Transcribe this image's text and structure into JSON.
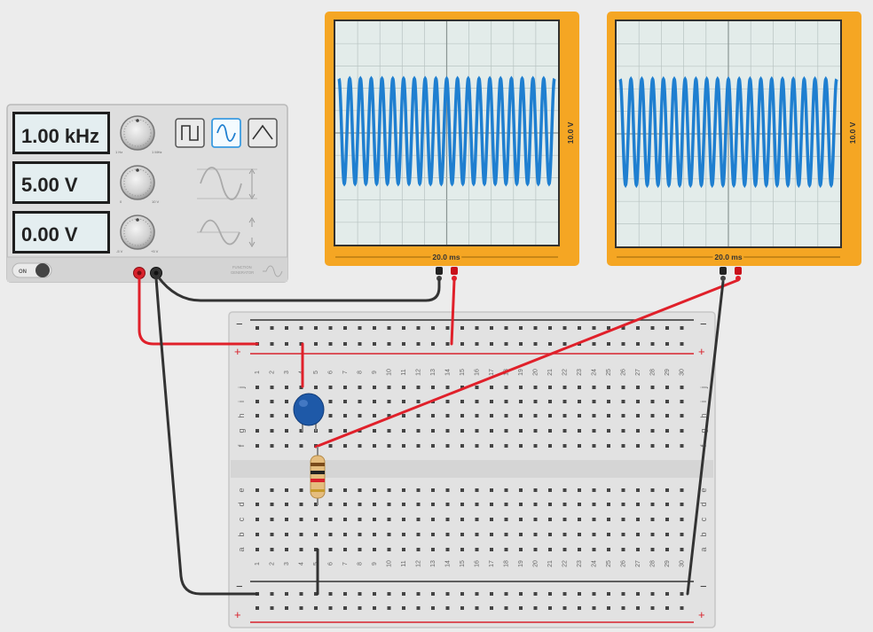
{
  "function_generator": {
    "frequency": "1.00 kHz",
    "amplitude": "5.00 V",
    "dc_offset": "0.00 V",
    "freq_dial_min": "1 Hz",
    "freq_dial_max": "1 MHz",
    "amp_dial_min": "0",
    "amp_dial_max": "10 V",
    "off_dial_min": "-5 V",
    "off_dial_max": "+5 V",
    "power_label": "ON",
    "brand_line1": "FUNCTION",
    "brand_line2": "GENERATOR",
    "waveform_selected": "sine",
    "waveform_buttons": [
      "square-wave-icon",
      "sine-wave-icon",
      "triangle-wave-icon"
    ]
  },
  "oscilloscope_1": {
    "time_label": "20.0 ms",
    "volt_label": "10.0 V"
  },
  "oscilloscope_2": {
    "time_label": "20.0 ms",
    "volt_label": "10.0 V"
  },
  "breadboard": {
    "row_labels_top": [
      "j",
      "i",
      "h",
      "g",
      "f"
    ],
    "row_labels_bottom": [
      "e",
      "d",
      "c",
      "b",
      "a"
    ],
    "rail_minus": "−",
    "rail_plus": "+"
  },
  "colors": {
    "scope_frame": "#f5a623",
    "trace": "#1f7fd0",
    "wire_red": "#e0202a",
    "wire_black": "#333333",
    "capacitor": "#1e59a8",
    "display_text": "#222222"
  }
}
